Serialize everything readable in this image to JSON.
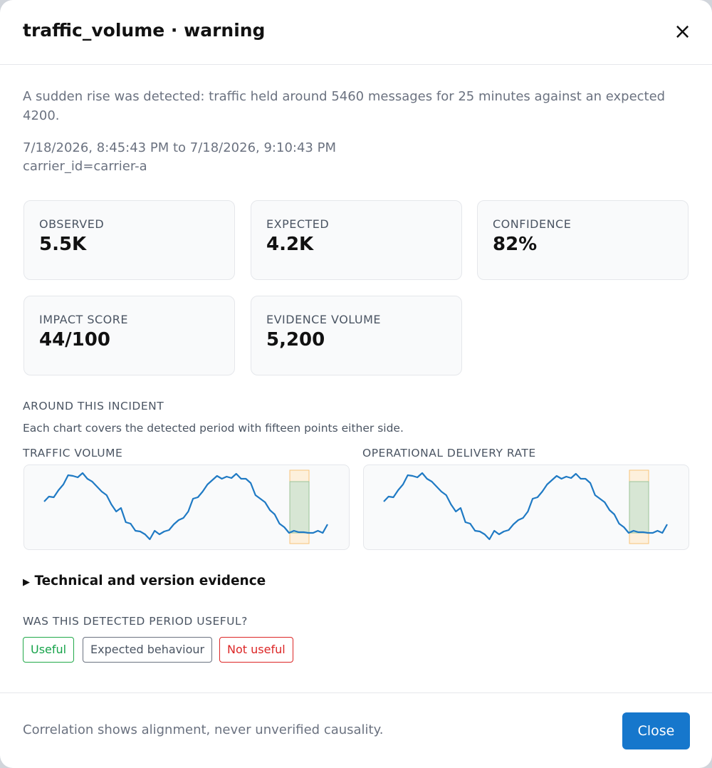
{
  "header": {
    "title": "traffic_volume · warning",
    "close_icon": "×"
  },
  "summary": "A sudden rise was detected: traffic held around 5460 messages for 25 minutes against an expected 4200.",
  "period": "7/18/2026, 8:45:43 PM to 7/18/2026, 9:10:43 PM",
  "scope": "carrier_id=carrier-a",
  "metrics": [
    {
      "label": "OBSERVED",
      "value": "5.5K"
    },
    {
      "label": "EXPECTED",
      "value": "4.2K"
    },
    {
      "label": "CONFIDENCE",
      "value": "82%"
    },
    {
      "label": "IMPACT SCORE",
      "value": "44/100"
    },
    {
      "label": "EVIDENCE VOLUME",
      "value": "5,200"
    }
  ],
  "context": {
    "heading": "AROUND THIS INCIDENT",
    "note": "Each chart covers the detected period with fifteen points either side."
  },
  "charts": [
    {
      "type": "line",
      "title": "TRAFFIC VOLUME",
      "color": "#1f7ac4",
      "ylim": [
        0,
        119
      ],
      "highlight": [
        51,
        55
      ],
      "values": [
        67,
        74,
        73,
        83,
        91,
        104,
        103,
        101,
        107,
        99,
        95,
        88,
        81,
        76,
        63,
        53,
        58,
        38,
        36,
        26,
        25,
        21,
        14,
        26,
        21,
        25,
        27,
        35,
        41,
        44,
        53,
        71,
        73,
        81,
        91,
        97,
        103,
        99,
        102,
        100,
        106,
        99,
        99,
        93,
        76,
        71,
        66,
        55,
        49,
        36,
        31,
        23,
        26,
        24,
        24,
        23,
        23,
        26,
        23,
        35
      ]
    },
    {
      "type": "line",
      "title": "OPERATIONAL DELIVERY RATE",
      "color": "#1f7ac4",
      "ylim": [
        0,
        119
      ],
      "highlight": [
        51,
        55
      ],
      "values": [
        67,
        74,
        73,
        83,
        91,
        104,
        103,
        101,
        107,
        99,
        95,
        88,
        81,
        76,
        63,
        53,
        58,
        38,
        36,
        26,
        25,
        21,
        14,
        26,
        21,
        25,
        27,
        35,
        41,
        44,
        53,
        71,
        73,
        81,
        91,
        97,
        103,
        99,
        102,
        100,
        106,
        99,
        99,
        93,
        76,
        71,
        66,
        55,
        49,
        36,
        31,
        23,
        26,
        24,
        24,
        23,
        23,
        26,
        23,
        35
      ]
    }
  ],
  "details": "Technical and version evidence",
  "feedback": {
    "question": "WAS THIS DETECTED PERIOD USEFUL?",
    "options": [
      "Useful",
      "Expected behaviour",
      "Not useful"
    ]
  },
  "footer": {
    "note": "Correlation shows alignment, never unverified causality.",
    "button": "Close"
  }
}
